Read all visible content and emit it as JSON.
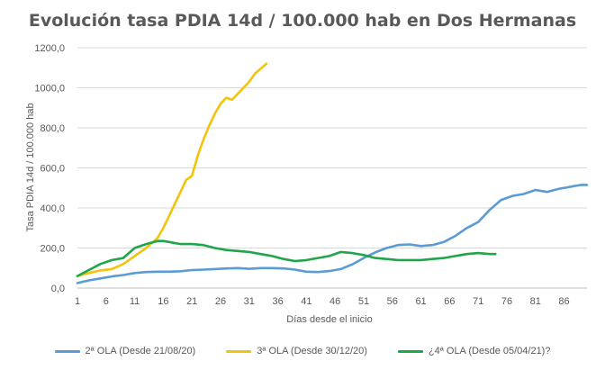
{
  "chart_data": {
    "type": "line",
    "title": "Evolución  tasa PDIA 14d / 100.000 hab en Dos Hermanas",
    "xlabel": "Días desde el inicio",
    "ylabel": "Tasa PDIA 14d / 100.000 hab",
    "xlim": [
      1,
      90
    ],
    "ylim": [
      0,
      1200
    ],
    "x_ticks": [
      "1",
      "6",
      "11",
      "16",
      "21",
      "26",
      "31",
      "36",
      "41",
      "46",
      "51",
      "56",
      "61",
      "66",
      "71",
      "76",
      "81",
      "86"
    ],
    "y_ticks": [
      "0,0",
      "200,0",
      "400,0",
      "600,0",
      "800,0",
      "1000,0",
      "1200,0"
    ],
    "grid": "horizontal",
    "legend_position": "bottom",
    "series": [
      {
        "name": "2ª OLA (Desde 21/08/20)",
        "color": "#5b9bd5",
        "x": [
          1,
          3,
          5,
          7,
          9,
          11,
          13,
          15,
          17,
          19,
          21,
          23,
          25,
          27,
          29,
          31,
          33,
          35,
          37,
          39,
          41,
          43,
          45,
          47,
          49,
          51,
          53,
          55,
          57,
          59,
          61,
          63,
          65,
          67,
          69,
          71,
          73,
          75,
          77,
          79,
          81,
          83,
          85,
          87,
          89,
          90
        ],
        "y": [
          25,
          38,
          48,
          58,
          65,
          75,
          80,
          82,
          82,
          84,
          90,
          92,
          95,
          98,
          100,
          96,
          100,
          100,
          98,
          92,
          82,
          80,
          85,
          95,
          118,
          150,
          178,
          200,
          215,
          218,
          210,
          215,
          230,
          260,
          300,
          330,
          390,
          440,
          460,
          470,
          490,
          480,
          495,
          505,
          515,
          515
        ]
      },
      {
        "name": "3ª OLA (Desde 30/12/20)",
        "color": "#f2c40c",
        "x": [
          1,
          3,
          5,
          7,
          9,
          11,
          13,
          15,
          16,
          17,
          18,
          19,
          20,
          21,
          22,
          23,
          24,
          25,
          26,
          27,
          28,
          29,
          30,
          31,
          32,
          33,
          34
        ],
        "y": [
          60,
          75,
          88,
          95,
          120,
          160,
          200,
          250,
          300,
          360,
          420,
          480,
          540,
          560,
          660,
          740,
          810,
          870,
          920,
          950,
          940,
          970,
          1000,
          1030,
          1070,
          1095,
          1120
        ]
      },
      {
        "name": "¿4ª OLA (Desde 05/04/21)?",
        "color": "#1fa64a",
        "x": [
          1,
          3,
          5,
          7,
          9,
          11,
          13,
          15,
          16,
          17,
          19,
          21,
          23,
          25,
          27,
          29,
          31,
          33,
          35,
          37,
          39,
          41,
          43,
          45,
          47,
          49,
          51,
          53,
          55,
          57,
          59,
          61,
          63,
          65,
          67,
          69,
          71,
          73,
          74
        ],
        "y": [
          60,
          90,
          120,
          140,
          150,
          200,
          220,
          235,
          235,
          230,
          220,
          220,
          215,
          200,
          190,
          185,
          180,
          170,
          160,
          145,
          135,
          140,
          150,
          160,
          180,
          175,
          165,
          150,
          145,
          140,
          140,
          140,
          145,
          150,
          160,
          170,
          175,
          170,
          170
        ]
      }
    ]
  }
}
